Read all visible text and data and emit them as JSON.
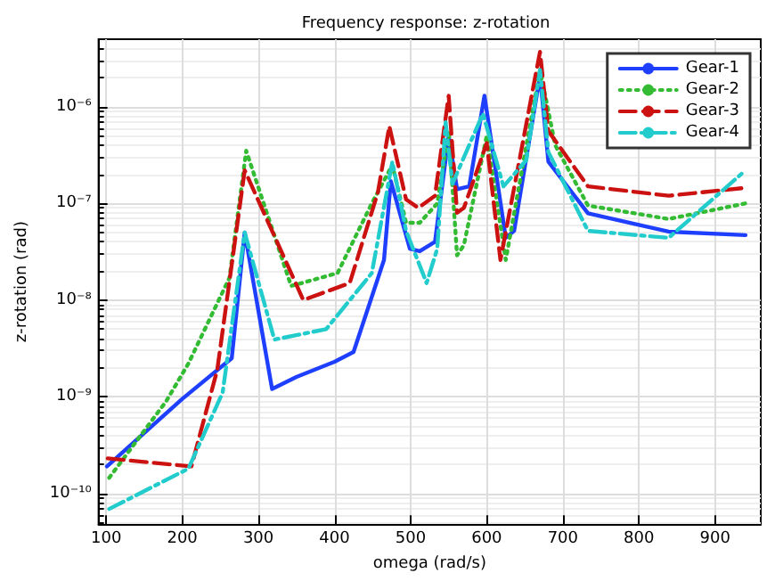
{
  "chart_data": {
    "type": "line",
    "title": "Frequency response: z-rotation",
    "xlabel": "omega (rad/s)",
    "ylabel": "z-rotation (rad)",
    "xlim": [
      90,
      960
    ],
    "xticks": [
      100,
      200,
      300,
      400,
      500,
      600,
      700,
      800,
      900
    ],
    "ylim": [
      4.8e-11,
      5e-06
    ],
    "yticks": [
      {
        "value": 1e-10,
        "label": "10⁻¹⁰"
      },
      {
        "value": 1e-09,
        "label": "10⁻⁹"
      },
      {
        "value": 1e-08,
        "label": "10⁻⁸"
      },
      {
        "value": 1e-07,
        "label": "10⁻⁷"
      },
      {
        "value": 1e-06,
        "label": "10⁻⁶"
      }
    ],
    "log": "y",
    "grid": true,
    "legend": "top right",
    "marker": "none",
    "series": [
      {
        "name": "Gear-1",
        "color": "#1f3fff",
        "line_style": "solid",
        "x": [
          101,
          200,
          265,
          282,
          318,
          350,
          400,
          425,
          465,
          474,
          499,
          512,
          532,
          550,
          561,
          577,
          597,
          625,
          636,
          670,
          681,
          733,
          839,
          940
        ],
        "values": [
          1.9e-10,
          9.5e-10,
          2.5e-09,
          5e-08,
          1.2e-09,
          1.6e-09,
          2.3e-09,
          2.9e-09,
          2.6e-08,
          1.7e-07,
          3.4e-08,
          3.2e-08,
          4e-08,
          5e-07,
          1.4e-07,
          1.5e-07,
          1.3e-06,
          4.4e-08,
          5.2e-08,
          2.1e-06,
          2.7e-07,
          7.9e-08,
          5.1e-08,
          4.7e-08
        ]
      },
      {
        "name": "Gear-2",
        "color": "#33bb33",
        "line_style": "dotted",
        "x": [
          104,
          179,
          208,
          262,
          284,
          343,
          404,
          449,
          476,
          494,
          512,
          535,
          550,
          561,
          570,
          600,
          625,
          670,
          690,
          733,
          839,
          940
        ],
        "values": [
          1.45e-10,
          9e-10,
          2.2e-09,
          1.7e-08,
          3.5e-07,
          1.4e-08,
          1.9e-08,
          1e-07,
          2.5e-07,
          6.3e-08,
          6.3e-08,
          1e-07,
          5.6e-07,
          2.9e-08,
          3.7e-08,
          5e-07,
          2.6e-08,
          2.4e-06,
          4e-07,
          9.5e-08,
          6.9e-08,
          1e-07
        ]
      },
      {
        "name": "Gear-3",
        "color": "#cc1111",
        "line_style": "dashed",
        "x": [
          102,
          212,
          246,
          282,
          359,
          420,
          457,
          472,
          494,
          510,
          532,
          550,
          561,
          570,
          600,
          618,
          670,
          681,
          733,
          839,
          940
        ],
        "values": [
          2.3e-10,
          1.9e-10,
          1.9e-09,
          2.2e-07,
          1e-08,
          1.5e-08,
          1.3e-07,
          6.3e-07,
          1.1e-07,
          9e-08,
          1.2e-07,
          1.3e-06,
          8e-08,
          9e-08,
          4.2e-07,
          2.6e-08,
          3.7e-06,
          5.6e-07,
          1.5e-07,
          1.2e-07,
          1.45e-07
        ]
      },
      {
        "name": "Gear-4",
        "color": "#22cccc",
        "line_style": "dashdot",
        "x": [
          104,
          208,
          253,
          282,
          321,
          389,
          449,
          476,
          494,
          521,
          535,
          546,
          555,
          595,
          622,
          652,
          670,
          681,
          733,
          839,
          940
        ],
        "values": [
          6.9e-11,
          1.8e-10,
          1.1e-09,
          5e-08,
          3.9e-09,
          5e-09,
          1.9e-08,
          2.7e-07,
          5.2e-08,
          1.5e-08,
          3.4e-08,
          6.9e-07,
          1.6e-07,
          8.5e-07,
          1.5e-07,
          2.8e-07,
          2.4e-06,
          3.4e-07,
          5.2e-08,
          4.4e-08,
          2.2e-07
        ]
      }
    ]
  }
}
